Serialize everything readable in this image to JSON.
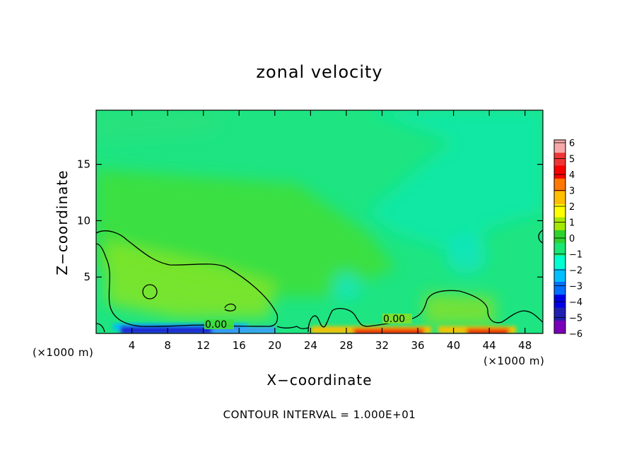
{
  "chart_data": {
    "type": "heatmap",
    "title": "zonal velocity",
    "xlabel": "X−coordinate",
    "ylabel": "Z−coordinate",
    "x_unit": "(×1000 m)",
    "y_unit": "(×1000 m)",
    "xlim": [
      0,
      50
    ],
    "ylim": [
      0,
      19.8
    ],
    "x_ticks": [
      4,
      8,
      12,
      16,
      20,
      24,
      28,
      32,
      36,
      40,
      44,
      48
    ],
    "y_ticks": [
      5,
      10,
      15
    ],
    "colorbar": {
      "levels": [
        6,
        5,
        4,
        3,
        2,
        1,
        0,
        -1,
        -2,
        -3,
        -4,
        -5,
        -6
      ],
      "level_labels": [
        "6",
        "5",
        "4",
        "3",
        "2",
        "1",
        "0",
        "−1",
        "−2",
        "−3",
        "−4",
        "−5",
        "−6"
      ],
      "colors": [
        "#f7a8a8",
        "#f03535",
        "#f70000",
        "#ff7800",
        "#ffbf00",
        "#ffff00",
        "#a5e800",
        "#2fd22f",
        "#19e673",
        "#00ffd2",
        "#00bfff",
        "#0070ff",
        "#0000e6",
        "#2020b0",
        "#7a00b8"
      ]
    },
    "background_color": "#1ee582",
    "contour_labels": [
      "0.00",
      "0.00"
    ],
    "contour_interval": "CONTOUR INTERVAL = 1.000E+01"
  }
}
